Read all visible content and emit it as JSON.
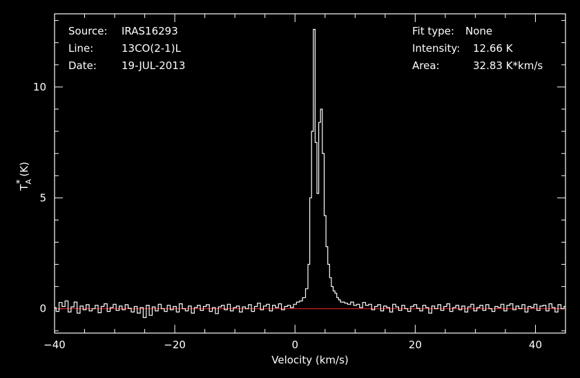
{
  "chart_data": {
    "type": "line",
    "xlabel": "Velocity (km/s)",
    "ylabel_main": "T",
    "ylabel_sub": "A",
    "ylabel_sup": "*",
    "ylabel_unit": "(K)",
    "xlim": [
      -40,
      45
    ],
    "ylim": [
      -1.1,
      13.3
    ],
    "x_ticks_major": [
      -40,
      -20,
      0,
      20,
      40
    ],
    "x_tick_labels": [
      "−40",
      "−20",
      "0",
      "20",
      "40"
    ],
    "x_minor_step": 5,
    "y_ticks_major": [
      0,
      5,
      10
    ],
    "y_tick_labels": [
      "0",
      "5",
      "10"
    ],
    "y_minor_step": 1,
    "baseline": 0,
    "baseline_color": "#e02020",
    "line_color": "#ffffff",
    "info_left": [
      {
        "key": "Source:",
        "value": "IRAS16293"
      },
      {
        "key": "Line:",
        "value": "13CO(2-1)L"
      },
      {
        "key": "Date:",
        "value": "19-JUL-2013"
      }
    ],
    "info_right": [
      {
        "key": "Fit type:",
        "value": "None"
      },
      {
        "key": "Intensity:",
        "value": "12.66 K"
      },
      {
        "key": "Area:",
        "value": "32.83 K*km/s"
      }
    ],
    "series": [
      {
        "x": [
          -40.0,
          -39.5,
          -39.0,
          -38.5,
          -38.0,
          -37.5,
          -37.0,
          -36.5,
          -36.0,
          -35.5,
          -35.0,
          -34.5,
          -34.0,
          -33.5,
          -33.0,
          -32.5,
          -32.0,
          -31.5,
          -31.0,
          -30.5,
          -30.0,
          -29.5,
          -29.0,
          -28.5,
          -28.0,
          -27.5,
          -27.0,
          -26.5,
          -26.0,
          -25.5,
          -25.0,
          -24.5,
          -24.0,
          -23.5,
          -23.0,
          -22.5,
          -22.0,
          -21.5,
          -21.0,
          -20.5,
          -20.0,
          -19.5,
          -19.0,
          -18.5,
          -18.0,
          -17.5,
          -17.0,
          -16.5,
          -16.0,
          -15.5,
          -15.0,
          -14.5,
          -14.0,
          -13.5,
          -13.0,
          -12.5,
          -12.0,
          -11.5,
          -11.0,
          -10.5,
          -10.0,
          -9.5,
          -9.0,
          -8.5,
          -8.0,
          -7.5,
          -7.0,
          -6.5,
          -6.0,
          -5.5,
          -5.0,
          -4.5,
          -4.0,
          -3.5,
          -3.0,
          -2.5,
          -2.0,
          -1.5,
          -1.0,
          -0.5,
          0.0,
          0.5,
          1.0,
          1.5,
          2.0,
          2.3,
          2.6,
          2.9,
          3.2,
          3.5,
          3.8,
          4.1,
          4.4,
          4.7,
          5.0,
          5.3,
          5.6,
          5.9,
          6.2,
          6.5,
          6.8,
          7.1,
          7.4,
          7.7,
          8.0,
          8.5,
          9.0,
          9.5,
          10.0,
          10.5,
          11.0,
          11.5,
          12.0,
          12.5,
          13.0,
          13.5,
          14.0,
          14.5,
          15.0,
          15.5,
          16.0,
          16.5,
          17.0,
          17.5,
          18.0,
          18.5,
          19.0,
          19.5,
          20.0,
          20.5,
          21.0,
          21.5,
          22.0,
          22.5,
          23.0,
          23.5,
          24.0,
          24.5,
          25.0,
          25.5,
          26.0,
          26.5,
          27.0,
          27.5,
          28.0,
          28.5,
          29.0,
          29.5,
          30.0,
          30.5,
          31.0,
          31.5,
          32.0,
          32.5,
          33.0,
          33.5,
          34.0,
          34.5,
          35.0,
          35.5,
          36.0,
          36.5,
          37.0,
          37.5,
          38.0,
          38.5,
          39.0,
          39.5,
          40.0,
          40.5,
          41.0,
          41.5,
          42.0,
          42.5,
          43.0,
          43.5,
          44.0,
          44.5,
          45.0
        ],
        "y": [
          0.05,
          -0.12,
          0.28,
          0.1,
          0.35,
          -0.15,
          0.08,
          0.3,
          -0.2,
          0.12,
          -0.05,
          0.18,
          -0.1,
          0.0,
          0.15,
          -0.18,
          0.1,
          0.22,
          -0.12,
          0.05,
          0.2,
          -0.08,
          0.12,
          -0.05,
          0.18,
          0.02,
          -0.15,
          0.1,
          -0.2,
          0.05,
          -0.4,
          0.15,
          -0.3,
          0.08,
          -0.1,
          0.2,
          0.0,
          -0.12,
          0.15,
          -0.05,
          0.1,
          -0.15,
          0.22,
          0.0,
          -0.1,
          0.12,
          -0.2,
          0.05,
          0.15,
          -0.08,
          0.1,
          0.18,
          -0.12,
          0.05,
          -0.22,
          0.08,
          0.15,
          -0.05,
          0.2,
          -0.1,
          0.05,
          0.12,
          -0.15,
          0.08,
          0.0,
          0.18,
          -0.12,
          0.1,
          0.25,
          -0.05,
          0.12,
          0.2,
          -0.1,
          0.15,
          0.05,
          0.22,
          -0.05,
          0.1,
          0.15,
          0.05,
          0.2,
          0.3,
          0.35,
          0.5,
          0.9,
          2.0,
          5.0,
          8.0,
          12.6,
          7.5,
          5.2,
          8.4,
          9.0,
          7.0,
          4.2,
          2.8,
          2.0,
          1.4,
          1.0,
          0.8,
          0.7,
          0.5,
          0.4,
          0.3,
          0.3,
          0.25,
          0.2,
          0.3,
          0.15,
          0.2,
          0.05,
          0.28,
          0.15,
          0.2,
          -0.05,
          0.1,
          0.18,
          -0.1,
          0.12,
          0.05,
          -0.15,
          0.2,
          0.08,
          -0.08,
          0.15,
          0.0,
          -0.12,
          0.1,
          0.18,
          0.02,
          -0.1,
          0.15,
          0.05,
          -0.2,
          0.12,
          0.0,
          0.18,
          -0.08,
          0.1,
          0.22,
          -0.12,
          0.05,
          0.15,
          -0.05,
          0.12,
          -0.15,
          0.08,
          0.2,
          -0.1,
          0.05,
          0.15,
          -0.08,
          0.18,
          0.0,
          -0.12,
          0.1,
          0.05,
          0.2,
          -0.1,
          0.15,
          0.22,
          -0.05,
          0.12,
          0.0,
          0.18,
          -0.15,
          0.1,
          0.05,
          0.2,
          -0.08,
          0.12,
          0.15,
          -0.1,
          0.22,
          0.05,
          -0.15,
          0.18,
          0.0,
          0.1
        ]
      }
    ]
  }
}
